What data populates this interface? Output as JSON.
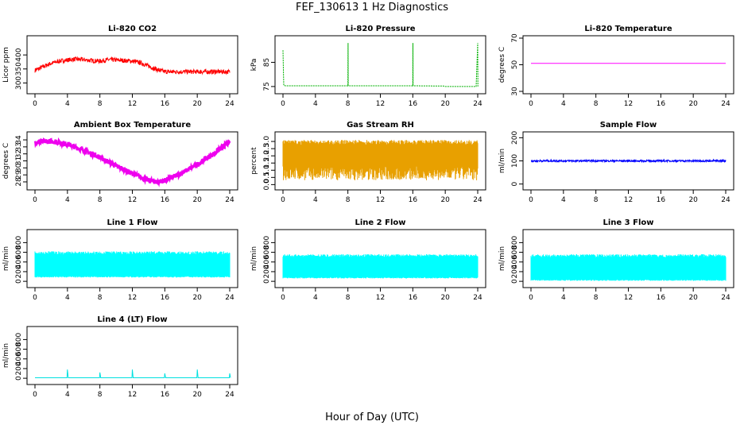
{
  "title": "FEF_130613  1 Hz Diagnostics",
  "xlabel": "Hour of Day (UTC)",
  "chart_data": [
    {
      "type": "line",
      "title": "Li-820 CO2",
      "ylabel": "Licor ppm",
      "color": "#ff0000",
      "xlim": [
        0,
        24
      ],
      "xticks": [
        0,
        4,
        8,
        12,
        16,
        20,
        24
      ],
      "ylim": [
        270,
        460
      ],
      "yticks": [
        300,
        350,
        400
      ],
      "series": [
        {
          "x": [
            0,
            1,
            2,
            3,
            4,
            5,
            6,
            7,
            8,
            9,
            10,
            11,
            12,
            13,
            14,
            15,
            16,
            17,
            18,
            19,
            20,
            21,
            22,
            23,
            24
          ],
          "values": [
            345,
            358,
            370,
            378,
            382,
            385,
            383,
            380,
            378,
            383,
            382,
            380,
            378,
            372,
            360,
            348,
            340,
            340,
            340,
            340,
            340,
            340,
            340,
            340,
            340
          ]
        }
      ]
    },
    {
      "type": "line",
      "title": "Li-820 Pressure",
      "ylabel": "kPa",
      "color": "#00b000",
      "xlim": [
        0,
        24
      ],
      "xticks": [
        0,
        4,
        8,
        12,
        16,
        20,
        24
      ],
      "ylim": [
        73,
        95
      ],
      "yticks": [
        75,
        85
      ],
      "series": [
        {
          "x": [
            0,
            0.05,
            0.1,
            0.3,
            8,
            8.02,
            8.04,
            16,
            16.02,
            16.04,
            19.8,
            20,
            23.8,
            24,
            24.02
          ],
          "values": [
            90,
            82,
            75.5,
            75.3,
            75.3,
            93,
            75.3,
            75.3,
            93,
            75.3,
            75.2,
            75,
            75,
            93,
            75
          ]
        }
      ]
    },
    {
      "type": "line",
      "title": "Li-820 Temperature",
      "ylabel": "degrees C",
      "color": "#ff00ff",
      "xlim": [
        0,
        24
      ],
      "xticks": [
        0,
        4,
        8,
        12,
        16,
        20,
        24
      ],
      "ylim": [
        30,
        70
      ],
      "yticks": [
        30,
        50,
        70
      ],
      "series": [
        {
          "x": [
            0,
            24
          ],
          "values": [
            51,
            51
          ]
        }
      ]
    },
    {
      "type": "line",
      "title": "Ambient Box Temperature",
      "ylabel": "degrees C",
      "color": "#ee00ee",
      "xlim": [
        0,
        24
      ],
      "xticks": [
        0,
        4,
        8,
        12,
        16,
        20,
        24
      ],
      "ylim": [
        27.2,
        34.8
      ],
      "yticks": [
        28,
        29,
        30,
        31,
        32,
        33,
        34
      ],
      "series": [
        {
          "x": [
            0,
            2,
            4,
            6,
            8,
            10,
            12,
            14,
            15,
            16,
            18,
            20,
            22,
            24
          ],
          "values": [
            33.7,
            33.8,
            33.4,
            32.5,
            31.5,
            30.3,
            29.2,
            28.2,
            28.0,
            28.2,
            29.2,
            30.5,
            32.0,
            33.7
          ]
        }
      ]
    },
    {
      "type": "area",
      "title": "Gas Stream RH",
      "ylabel": "percent",
      "color": "#e8a000",
      "xlim": [
        0,
        24
      ],
      "xticks": [
        0,
        4,
        8,
        12,
        16,
        20,
        24
      ],
      "ylim": [
        -0.2,
        3.5
      ],
      "yticks": [
        0.0,
        0.5,
        1.0,
        1.5,
        2.0,
        2.5,
        3.0
      ],
      "series": [
        {
          "x": [
            0,
            24
          ],
          "low": [
            0.3,
            0.3
          ],
          "high": [
            3.1,
            3.1
          ]
        }
      ]
    },
    {
      "type": "line",
      "title": "Sample Flow",
      "ylabel": "ml/min",
      "color": "#0000ff",
      "xlim": [
        0,
        24
      ],
      "xticks": [
        0,
        4,
        8,
        12,
        16,
        20,
        24
      ],
      "ylim": [
        -15,
        215
      ],
      "yticks": [
        0,
        100,
        200
      ],
      "series": [
        {
          "x": [
            0,
            4,
            8,
            12,
            16,
            20,
            24
          ],
          "values": [
            100,
            100,
            100,
            100,
            100,
            100,
            100
          ]
        }
      ]
    },
    {
      "type": "area",
      "title": "Line 1 Flow",
      "ylabel": "ml/min",
      "color": "#00ffff",
      "xlim": [
        0,
        24
      ],
      "xticks": [
        0,
        4,
        8,
        12,
        16,
        20,
        24
      ],
      "ylim": [
        -80,
        1020
      ],
      "yticks": [
        0,
        200,
        400,
        600,
        800
      ],
      "series": [
        {
          "x": [
            0,
            24
          ],
          "low": [
            80,
            80
          ],
          "high": [
            620,
            620
          ]
        }
      ]
    },
    {
      "type": "area",
      "title": "Line 2 Flow",
      "ylabel": "ml/min",
      "color": "#00ffff",
      "xlim": [
        0,
        24
      ],
      "xticks": [
        0,
        4,
        8,
        12,
        16,
        20,
        24
      ],
      "ylim": [
        -80,
        1020
      ],
      "yticks": [
        0,
        200,
        400,
        600,
        800
      ],
      "series": [
        {
          "x": [
            0,
            24
          ],
          "low": [
            60,
            60
          ],
          "high": [
            560,
            560
          ]
        }
      ]
    },
    {
      "type": "area",
      "title": "Line 3 Flow",
      "ylabel": "ml/min",
      "color": "#00ffff",
      "xlim": [
        0,
        24
      ],
      "xticks": [
        0,
        4,
        8,
        12,
        16,
        20,
        24
      ],
      "ylim": [
        -80,
        1020
      ],
      "yticks": [
        0,
        200,
        400,
        600,
        800
      ],
      "series": [
        {
          "x": [
            0,
            24
          ],
          "low": [
            10,
            10
          ],
          "high": [
            560,
            560
          ]
        }
      ]
    },
    {
      "type": "line",
      "title": "Line 4 (LT) Flow",
      "ylabel": "ml/min",
      "color": "#00e0e0",
      "xlim": [
        0,
        24
      ],
      "xticks": [
        0,
        4,
        8,
        12,
        16,
        20,
        24
      ],
      "ylim": [
        -80,
        1020
      ],
      "yticks": [
        0,
        200,
        400,
        600,
        800
      ],
      "series": [
        {
          "x": [
            0,
            3.95,
            4,
            4.1,
            7.95,
            8,
            8.1,
            11.95,
            12,
            12.1,
            15.95,
            16,
            16.1,
            19.95,
            20,
            20.1,
            23.95,
            24,
            24.1
          ],
          "values": [
            10,
            10,
            180,
            10,
            10,
            120,
            10,
            10,
            180,
            10,
            10,
            100,
            10,
            10,
            180,
            10,
            10,
            100,
            10
          ]
        }
      ]
    }
  ]
}
